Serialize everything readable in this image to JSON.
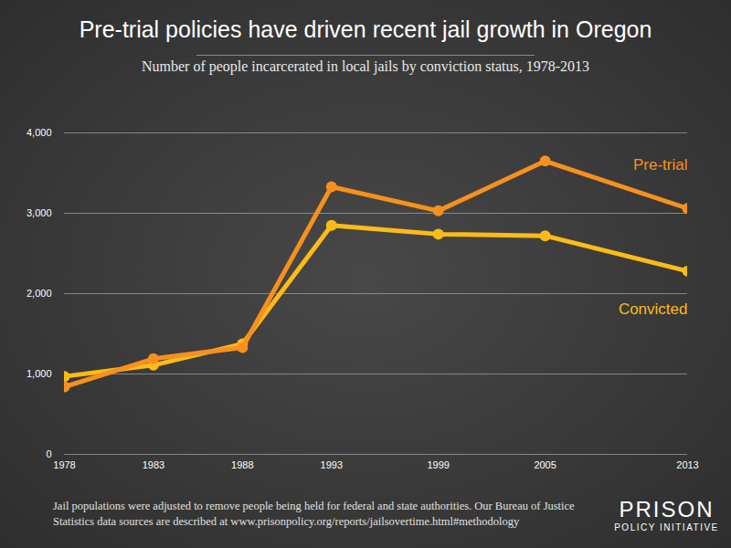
{
  "chart_data": {
    "type": "line",
    "title": "Pre-trial policies have driven recent jail growth in Oregon",
    "subtitle": "Number of people incarcerated in local jails by conviction status, 1978-2013",
    "x": [
      1978,
      1983,
      1988,
      1993,
      1999,
      2005,
      2013
    ],
    "xlim": [
      1978,
      2013
    ],
    "xticks": [
      1978,
      1983,
      1988,
      1993,
      1999,
      2005,
      2013
    ],
    "ylim": [
      0,
      4000
    ],
    "yticks": [
      0,
      {
        "value": 1000,
        "label": "1,000"
      },
      {
        "value": 2000,
        "label": "2,000"
      },
      {
        "value": 3000,
        "label": "3,000"
      },
      {
        "value": 4000,
        "label": "4,000"
      }
    ],
    "grid": true,
    "marker": "circle",
    "series": [
      {
        "name": "Pre-trial",
        "color": "#f7901e",
        "values": [
          840,
          1190,
          1330,
          3330,
          3030,
          3650,
          3060
        ]
      },
      {
        "name": "Convicted",
        "color": "#fdbb16",
        "values": [
          970,
          1110,
          1375,
          2850,
          2740,
          2720,
          2280
        ]
      }
    ],
    "caption": [
      "Jail populations were adjusted to remove people being held for federal and state authorities. Our Bureau of Justice",
      "Statistics data sources are described at www.prisonpolicy.org/reports/jailsovertime.html#methodology"
    ],
    "logo": [
      "PRISON",
      "POLICY INITIATIVE"
    ]
  }
}
